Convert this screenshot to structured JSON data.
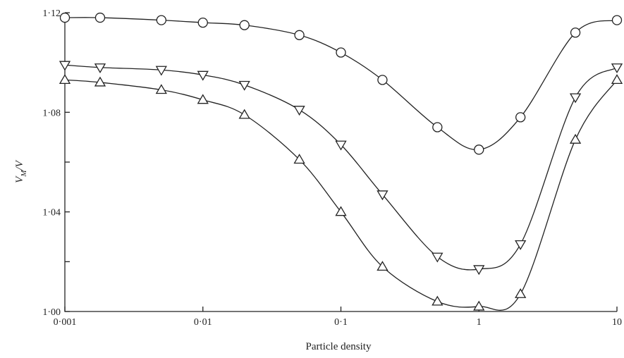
{
  "chart_data": {
    "type": "line",
    "title": "",
    "xlabel": "Particle density",
    "ylabel": "V_M/V",
    "x_scale": "log",
    "xlim": [
      0.001,
      10
    ],
    "ylim": [
      1.0,
      1.12
    ],
    "x_ticks": [
      {
        "value": 0.001,
        "label": "0·001"
      },
      {
        "value": 0.01,
        "label": "0·01"
      },
      {
        "value": 0.1,
        "label": "0·1"
      },
      {
        "value": 1,
        "label": "1"
      },
      {
        "value": 10,
        "label": "10"
      }
    ],
    "y_ticks": [
      {
        "value": 1.0,
        "label": "1·00"
      },
      {
        "value": 1.04,
        "label": "1·04"
      },
      {
        "value": 1.08,
        "label": "1·08"
      },
      {
        "value": 1.12,
        "label": "1·12"
      }
    ],
    "y_minor_ticks": [
      1.02,
      1.06,
      1.1
    ],
    "grid": false,
    "series": [
      {
        "marker": "circle",
        "x": [
          0.001,
          0.0018,
          0.005,
          0.01,
          0.02,
          0.05,
          0.1,
          0.2,
          0.5,
          1,
          2,
          5,
          10
        ],
        "y": [
          1.118,
          1.118,
          1.117,
          1.116,
          1.115,
          1.111,
          1.104,
          1.093,
          1.074,
          1.065,
          1.078,
          1.112,
          1.117
        ]
      },
      {
        "marker": "triangle-down",
        "x": [
          0.001,
          0.0018,
          0.005,
          0.01,
          0.02,
          0.05,
          0.1,
          0.2,
          0.5,
          1,
          2,
          5,
          10
        ],
        "y": [
          1.099,
          1.098,
          1.097,
          1.095,
          1.091,
          1.081,
          1.067,
          1.047,
          1.022,
          1.017,
          1.027,
          1.086,
          1.098
        ]
      },
      {
        "marker": "triangle-up",
        "x": [
          0.001,
          0.0018,
          0.005,
          0.01,
          0.02,
          0.05,
          0.1,
          0.2,
          0.5,
          1,
          2,
          5,
          10
        ],
        "y": [
          1.093,
          1.092,
          1.089,
          1.085,
          1.079,
          1.061,
          1.04,
          1.018,
          1.004,
          1.002,
          1.007,
          1.069,
          1.093
        ]
      }
    ]
  }
}
